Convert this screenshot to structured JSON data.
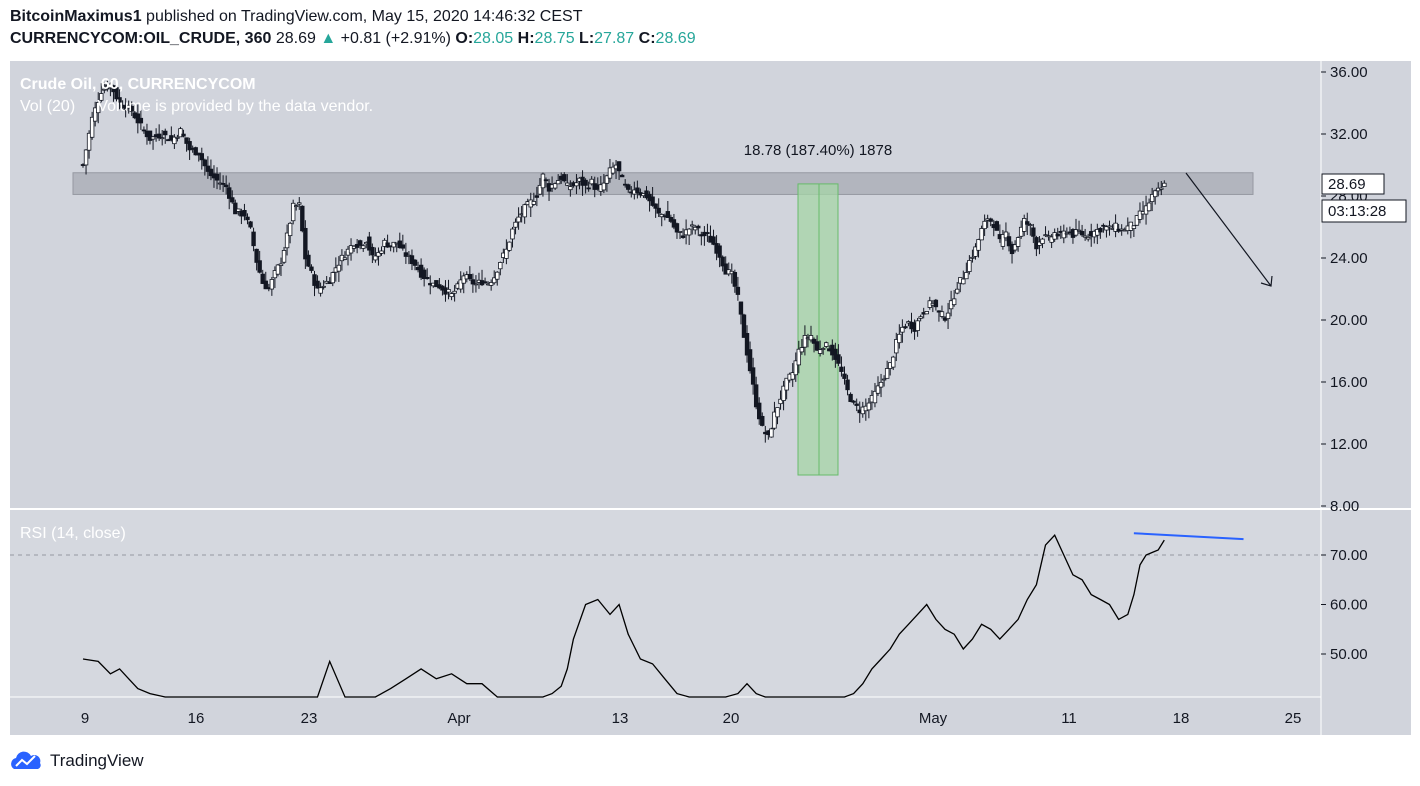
{
  "header": {
    "author": "BitcoinMaximus1",
    "published_text": " published on TradingView.com, May 15, 2020 14:46:32 CEST",
    "symbol": "CURRENCYCOM:OIL_CRUDE, 360",
    "last": "28.69",
    "change": "+0.81 (+2.91%)",
    "o_label": "O:",
    "o_value": "28.05",
    "h_label": "H:",
    "h_value": "28.75",
    "l_label": "L:",
    "l_value": "27.87",
    "c_label": "C:",
    "c_value": "28.69"
  },
  "legend": {
    "series_title": "Crude Oil, 6",
    "series_title_cont": "0, CURRENCYCOM",
    "volume_note": "Vol (20)     Volume is provided by the data vendor.",
    "rsi_title": "RSI (14, close)"
  },
  "annotation": {
    "measure_label": "18.78 (187.40%) 1878"
  },
  "price_tags": {
    "last_price": "28.69",
    "countdown": "03:13:28"
  },
  "footer": {
    "brand": "TradingView"
  },
  "colors": {
    "panel_bg": "#d1d4dc",
    "rsi_bg": "#d5d8df",
    "zone": "#b2b5be",
    "measure": "#a5d6a7",
    "rsi_line": "#000000",
    "trend_line": "#2962ff",
    "candle_up": "#ffffff",
    "candle_down": "#131722"
  },
  "chart_data": [
    {
      "type": "candlestick",
      "title": "Crude Oil, 60, CURRENCYCOM",
      "x_tick_labels": [
        "9",
        "16",
        "23",
        "Apr",
        "13",
        "20",
        "May",
        "11",
        "18",
        "25"
      ],
      "y_tick_labels": [
        "36.00",
        "32.00",
        "28.00",
        "24.00",
        "20.00",
        "16.00",
        "12.00",
        "8.00"
      ],
      "ylim": [
        8,
        36.8
      ],
      "resistance_zone": [
        28.1,
        29.5
      ],
      "measure": {
        "from": 10.0,
        "to": 28.78,
        "label": "18.78 (187.40%) 1878"
      },
      "close_path": [
        [
          0,
          30.0
        ],
        [
          6,
          33.0
        ],
        [
          12,
          34.8
        ],
        [
          18,
          35.2
        ],
        [
          24,
          34.0
        ],
        [
          32,
          33.5
        ],
        [
          38,
          32.5
        ],
        [
          44,
          31.7
        ],
        [
          52,
          32.0
        ],
        [
          58,
          31.6
        ],
        [
          64,
          32.2
        ],
        [
          70,
          31.0
        ],
        [
          76,
          30.8
        ],
        [
          82,
          29.5
        ],
        [
          88,
          29.0
        ],
        [
          94,
          28.6
        ],
        [
          100,
          27.0
        ],
        [
          106,
          26.8
        ],
        [
          110,
          25.8
        ],
        [
          114,
          23.8
        ],
        [
          118,
          22.4
        ],
        [
          122,
          22.0
        ],
        [
          126,
          23.0
        ],
        [
          130,
          23.8
        ],
        [
          134,
          25.4
        ],
        [
          138,
          27.3
        ],
        [
          142,
          27.4
        ],
        [
          146,
          24.0
        ],
        [
          150,
          23.0
        ],
        [
          154,
          21.9
        ],
        [
          158,
          22.3
        ],
        [
          162,
          22.6
        ],
        [
          166,
          23.4
        ],
        [
          170,
          24.0
        ],
        [
          174,
          24.5
        ],
        [
          178,
          25.0
        ],
        [
          182,
          24.8
        ],
        [
          186,
          25.2
        ],
        [
          190,
          24.0
        ],
        [
          194,
          24.3
        ],
        [
          198,
          25.0
        ],
        [
          202,
          24.8
        ],
        [
          206,
          25.0
        ],
        [
          210,
          24.4
        ],
        [
          214,
          24.0
        ],
        [
          218,
          23.6
        ],
        [
          222,
          23.0
        ],
        [
          226,
          22.6
        ],
        [
          230,
          22.3
        ],
        [
          234,
          22.2
        ],
        [
          238,
          21.9
        ],
        [
          242,
          21.6
        ],
        [
          246,
          22.1
        ],
        [
          250,
          22.9
        ],
        [
          254,
          22.5
        ],
        [
          258,
          22.3
        ],
        [
          262,
          22.5
        ],
        [
          266,
          22.4
        ],
        [
          270,
          22.8
        ],
        [
          274,
          23.8
        ],
        [
          278,
          24.5
        ],
        [
          282,
          25.8
        ],
        [
          286,
          26.6
        ],
        [
          290,
          27.2
        ],
        [
          294,
          27.6
        ],
        [
          298,
          28.1
        ],
        [
          302,
          29.3
        ],
        [
          306,
          28.5
        ],
        [
          310,
          28.9
        ],
        [
          314,
          29.2
        ],
        [
          318,
          28.6
        ],
        [
          322,
          28.7
        ],
        [
          326,
          29.0
        ],
        [
          330,
          28.6
        ],
        [
          334,
          28.9
        ],
        [
          338,
          28.3
        ],
        [
          342,
          28.8
        ],
        [
          346,
          29.6
        ],
        [
          350,
          30.0
        ],
        [
          354,
          29.0
        ],
        [
          358,
          28.2
        ],
        [
          362,
          28.5
        ],
        [
          366,
          28.2
        ],
        [
          370,
          28.0
        ],
        [
          374,
          27.4
        ],
        [
          378,
          26.8
        ],
        [
          382,
          26.8
        ],
        [
          386,
          26.4
        ],
        [
          390,
          25.6
        ],
        [
          394,
          25.5
        ],
        [
          398,
          25.9
        ],
        [
          402,
          26.0
        ],
        [
          406,
          25.5
        ],
        [
          410,
          25.4
        ],
        [
          414,
          24.9
        ],
        [
          418,
          24.2
        ],
        [
          422,
          23.2
        ],
        [
          426,
          22.9
        ],
        [
          430,
          21.4
        ],
        [
          434,
          19.0
        ],
        [
          438,
          16.8
        ],
        [
          442,
          14.6
        ],
        [
          446,
          13.0
        ],
        [
          450,
          12.4
        ],
        [
          454,
          13.9
        ],
        [
          458,
          15.0
        ],
        [
          462,
          16.0
        ],
        [
          466,
          16.6
        ],
        [
          470,
          18.0
        ],
        [
          474,
          18.8
        ],
        [
          478,
          19.0
        ],
        [
          482,
          18.0
        ],
        [
          486,
          18.4
        ],
        [
          490,
          18.2
        ],
        [
          494,
          17.6
        ],
        [
          498,
          16.6
        ],
        [
          502,
          15.4
        ],
        [
          506,
          14.5
        ],
        [
          510,
          14.2
        ],
        [
          514,
          14.4
        ],
        [
          518,
          14.9
        ],
        [
          522,
          15.6
        ],
        [
          526,
          16.4
        ],
        [
          530,
          17.1
        ],
        [
          534,
          18.5
        ],
        [
          538,
          19.5
        ],
        [
          542,
          19.8
        ],
        [
          546,
          19.5
        ],
        [
          550,
          20.3
        ],
        [
          554,
          20.8
        ],
        [
          558,
          21.2
        ],
        [
          562,
          20.4
        ],
        [
          566,
          20.2
        ],
        [
          570,
          21.0
        ],
        [
          574,
          22.2
        ],
        [
          578,
          22.8
        ],
        [
          582,
          23.8
        ],
        [
          586,
          24.6
        ],
        [
          590,
          25.8
        ],
        [
          594,
          26.6
        ],
        [
          598,
          26.2
        ],
        [
          602,
          25.0
        ],
        [
          606,
          25.6
        ],
        [
          610,
          24.4
        ],
        [
          614,
          25.4
        ],
        [
          618,
          26.4
        ],
        [
          622,
          26.0
        ],
        [
          626,
          24.8
        ],
        [
          630,
          25.4
        ],
        [
          634,
          25.2
        ],
        [
          638,
          25.6
        ],
        [
          642,
          25.4
        ],
        [
          646,
          25.8
        ],
        [
          650,
          25.5
        ],
        [
          654,
          25.7
        ],
        [
          658,
          25.4
        ],
        [
          662,
          25.6
        ],
        [
          666,
          25.8
        ],
        [
          670,
          26.0
        ],
        [
          674,
          25.9
        ],
        [
          678,
          26.0
        ],
        [
          682,
          25.8
        ],
        [
          686,
          26.0
        ],
        [
          690,
          26.2
        ],
        [
          694,
          26.8
        ],
        [
          698,
          27.2
        ],
        [
          702,
          28.0
        ],
        [
          706,
          28.3
        ],
        [
          710,
          28.69
        ]
      ]
    },
    {
      "type": "line",
      "title": "RSI (14, close)",
      "y_tick_labels": [
        "70.00",
        "60.00",
        "50.00"
      ],
      "ylim": [
        41.5,
        75.5
      ],
      "overbought_level": 70,
      "trend_line": [
        [
          690,
          74.4
        ],
        [
          762,
          73.2
        ]
      ],
      "x": [
        0,
        10,
        18,
        24,
        30,
        36,
        44,
        54,
        64,
        74,
        84,
        94,
        104,
        114,
        124,
        134,
        144,
        154,
        162,
        172,
        182,
        192,
        202,
        212,
        222,
        232,
        242,
        252,
        262,
        272,
        282,
        290,
        296,
        302,
        308,
        314,
        318,
        322,
        330,
        338,
        346,
        352,
        358,
        366,
        374,
        382,
        390,
        398,
        406,
        414,
        422,
        430,
        436,
        442,
        448,
        456,
        464,
        472,
        480,
        488,
        494,
        500,
        506,
        512,
        518,
        524,
        530,
        536,
        542,
        548,
        554,
        560,
        566,
        572,
        578,
        584,
        590,
        596,
        602,
        608,
        614,
        620,
        626,
        632,
        638,
        644,
        650,
        656,
        662,
        668,
        674,
        680,
        686,
        690,
        694,
        698,
        702,
        706,
        710
      ],
      "values": [
        49,
        48.5,
        46,
        47,
        45,
        43,
        42,
        41,
        40,
        40.5,
        41,
        41,
        40,
        41,
        39,
        40,
        41,
        41,
        48.5,
        40,
        39,
        41,
        43,
        45,
        47,
        45,
        46,
        44,
        44,
        41,
        40,
        41,
        39,
        40.5,
        42,
        43.5,
        47,
        53,
        60,
        61,
        58,
        60,
        54,
        49,
        48,
        45,
        42,
        40,
        40,
        38,
        39,
        42,
        44,
        42,
        41,
        40,
        39,
        38,
        37,
        39,
        40,
        41,
        42,
        44,
        47,
        49,
        51,
        54,
        56,
        58,
        60,
        57,
        55,
        54,
        51,
        53,
        56,
        55,
        53,
        55,
        57,
        61,
        64,
        72,
        74,
        70,
        66,
        65,
        62,
        61,
        60,
        57,
        58,
        62,
        68,
        70,
        70.5,
        71,
        73
      ]
    }
  ]
}
